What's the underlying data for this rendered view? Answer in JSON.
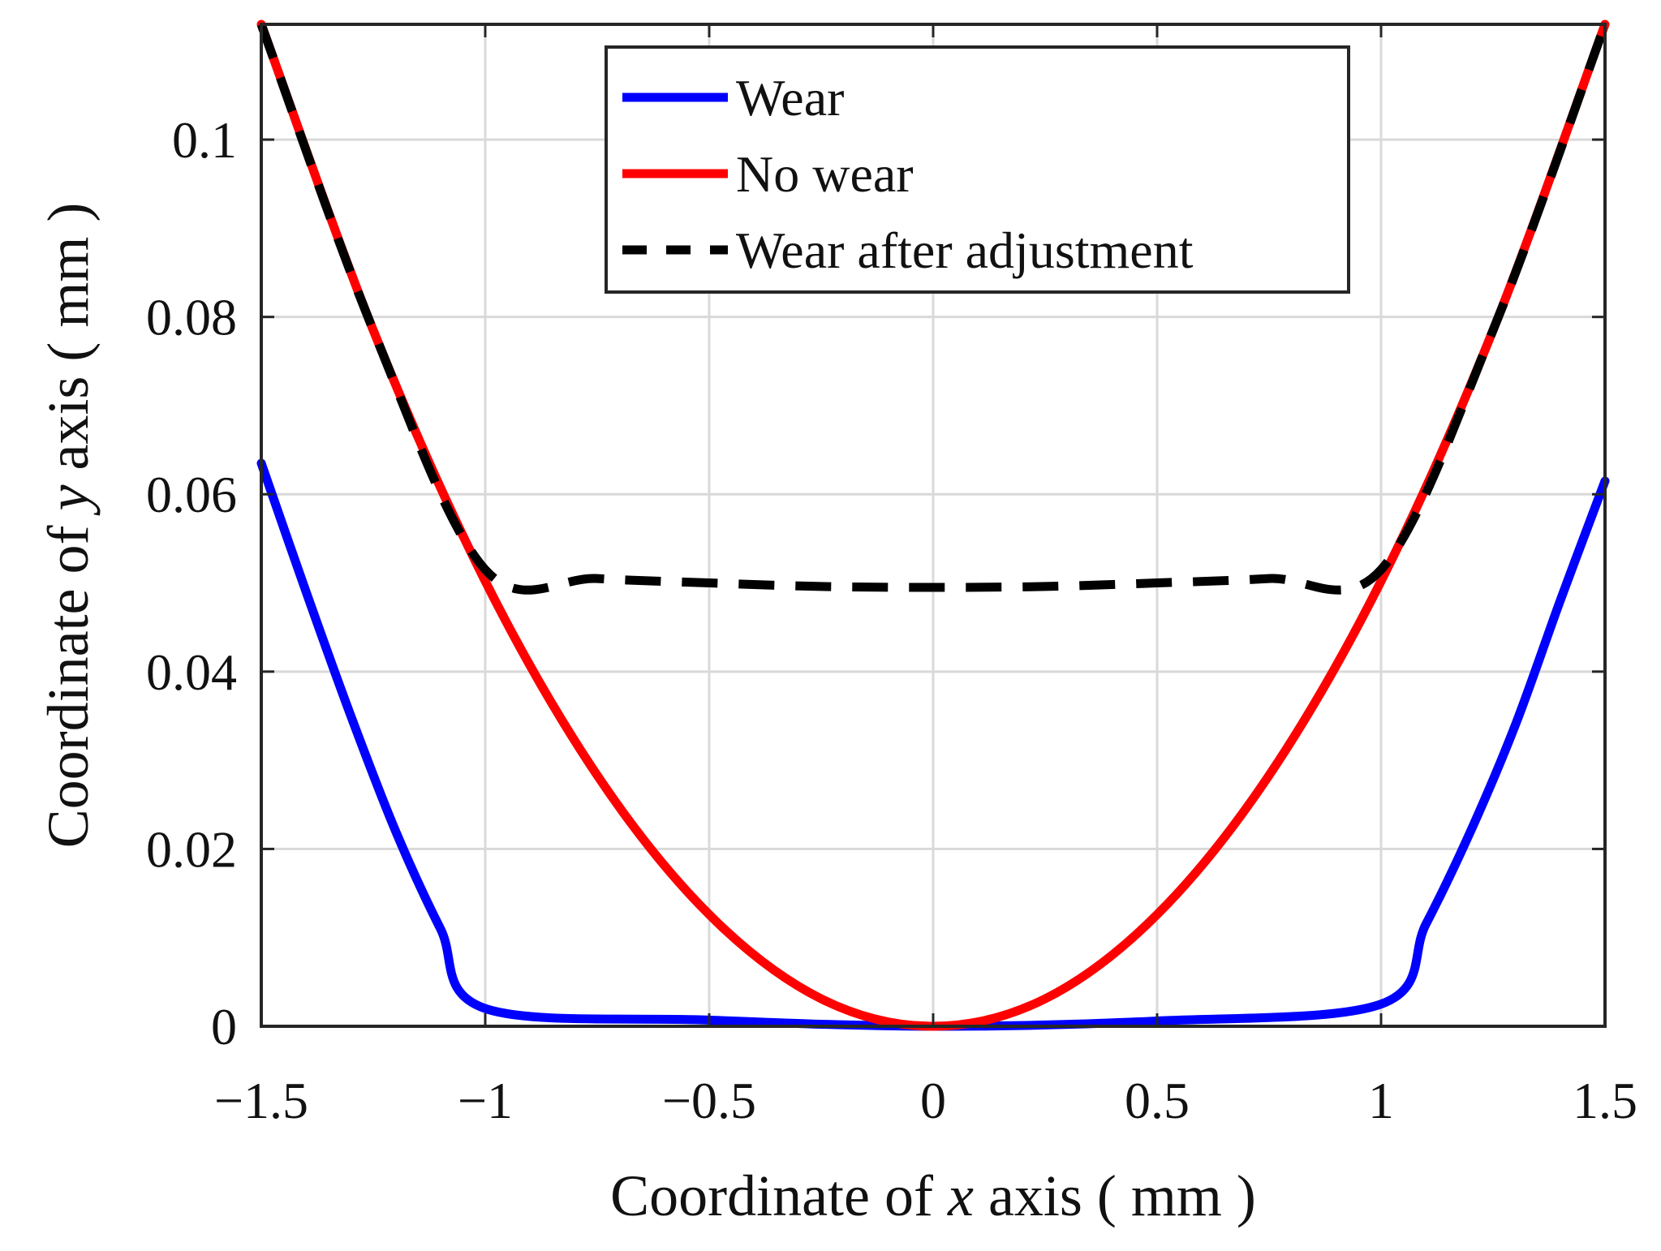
{
  "chart_data": {
    "type": "line",
    "title": "",
    "xlabel": {
      "prefix": "Coordinate of ",
      "var": "x",
      "suffix": " axis ( mm )"
    },
    "ylabel": {
      "prefix": "Coordinate of ",
      "var": "y",
      "suffix": " axis ( mm )"
    },
    "xlim": [
      -1.5,
      1.5
    ],
    "ylim": [
      0,
      0.113
    ],
    "xticks": [
      -1.5,
      -1,
      -0.5,
      0,
      0.5,
      1,
      1.5
    ],
    "xtick_labels": [
      "−1.5",
      "−1",
      "−0.5",
      "0",
      "0.5",
      "1",
      "1.5"
    ],
    "yticks": [
      0,
      0.02,
      0.04,
      0.06,
      0.08,
      0.1
    ],
    "ytick_labels": [
      "0",
      "0.02",
      "0.04",
      "0.06",
      "0.08",
      "0.1"
    ],
    "grid": true,
    "legend": {
      "position": "top-center",
      "entries": [
        "Wear",
        "No wear",
        "Wear after adjustment"
      ]
    },
    "series": [
      {
        "name": "Wear",
        "color": "#0000ff",
        "style": "solid",
        "x": [
          -1.5,
          -1.4,
          -1.3,
          -1.2,
          -1.1,
          -1.0,
          -0.5,
          0,
          0.5,
          1.0,
          1.1,
          1.2,
          1.3,
          1.4,
          1.5
        ],
        "y": [
          0.0635,
          0.049,
          0.035,
          0.022,
          0.011,
          0.002,
          0.0007,
          0.0,
          0.0006,
          0.0025,
          0.0115,
          0.022,
          0.034,
          0.048,
          0.0615
        ]
      },
      {
        "name": "No wear",
        "color": "#ff0000",
        "style": "solid",
        "x": [
          -1.5,
          -1.25,
          -1.0,
          -0.75,
          -0.5,
          -0.25,
          0,
          0.25,
          0.5,
          0.75,
          1.0,
          1.25,
          1.5
        ],
        "y": [
          0.113,
          0.0785,
          0.0502,
          0.0283,
          0.0126,
          0.0031,
          0.0,
          0.0031,
          0.0126,
          0.0283,
          0.0502,
          0.0785,
          0.113
        ]
      },
      {
        "name": "Wear after adjustment",
        "color": "#000000",
        "style": "dashed",
        "x": [
          -1.5,
          -1.25,
          -1.0,
          -0.75,
          -0.5,
          -0.25,
          0,
          0.25,
          0.5,
          0.75,
          1.0,
          1.25,
          1.5
        ],
        "y": [
          0.113,
          0.0785,
          0.0515,
          0.0505,
          0.05,
          0.0496,
          0.0495,
          0.0496,
          0.05,
          0.0505,
          0.0515,
          0.0785,
          0.113
        ]
      }
    ]
  }
}
